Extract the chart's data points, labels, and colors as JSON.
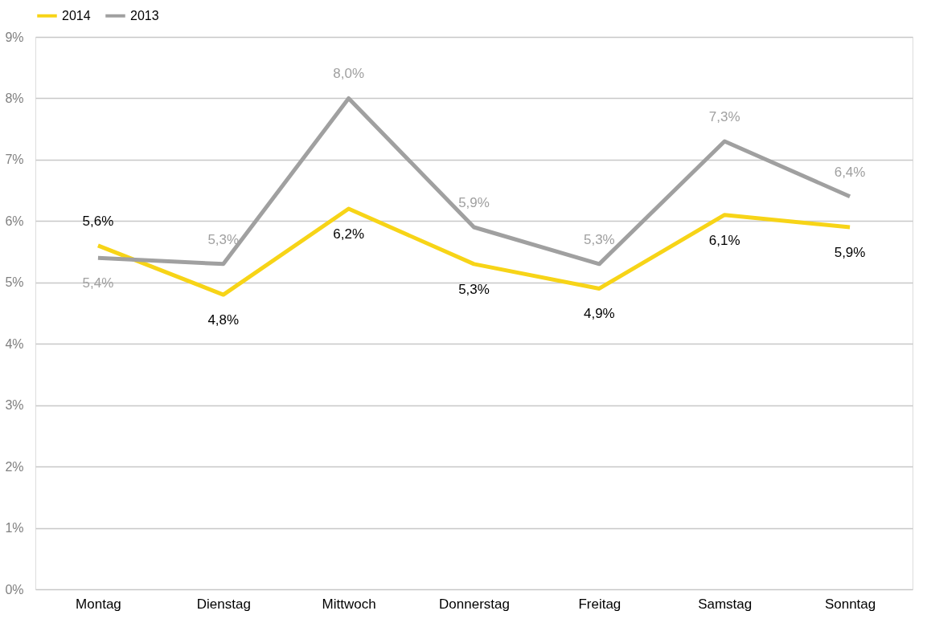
{
  "chart_data": {
    "type": "line",
    "categories": [
      "Montag",
      "Dienstag",
      "Mittwoch",
      "Donnerstag",
      "Freitag",
      "Samstag",
      "Sonntag"
    ],
    "series": [
      {
        "name": "2014",
        "color": "#f7d417",
        "values": [
          5.6,
          4.8,
          6.2,
          5.3,
          4.9,
          6.1,
          5.9
        ],
        "value_labels": [
          "5,6%",
          "4,8%",
          "6,2%",
          "5,3%",
          "4,9%",
          "6,1%",
          "5,9%"
        ]
      },
      {
        "name": "2013",
        "color": "#a0a0a0",
        "values": [
          5.4,
          5.3,
          8.0,
          5.9,
          5.3,
          7.3,
          6.4
        ],
        "value_labels": [
          "5,4%",
          "5,3%",
          "8,0%",
          "5,9%",
          "5,3%",
          "7,3%",
          "6,4%"
        ]
      }
    ],
    "ylim": [
      0,
      9
    ],
    "yticks": [
      {
        "value": 0,
        "label": "0%"
      },
      {
        "value": 1,
        "label": "1%"
      },
      {
        "value": 2,
        "label": "2%"
      },
      {
        "value": 3,
        "label": "3%"
      },
      {
        "value": 4,
        "label": "4%"
      },
      {
        "value": 5,
        "label": "5%"
      },
      {
        "value": 6,
        "label": "6%"
      },
      {
        "value": 7,
        "label": "7%"
      },
      {
        "value": 8,
        "label": "8%"
      },
      {
        "value": 9,
        "label": "9%"
      }
    ],
    "grid": "y",
    "legend": "top",
    "marker": "none",
    "line_style": "solid"
  }
}
